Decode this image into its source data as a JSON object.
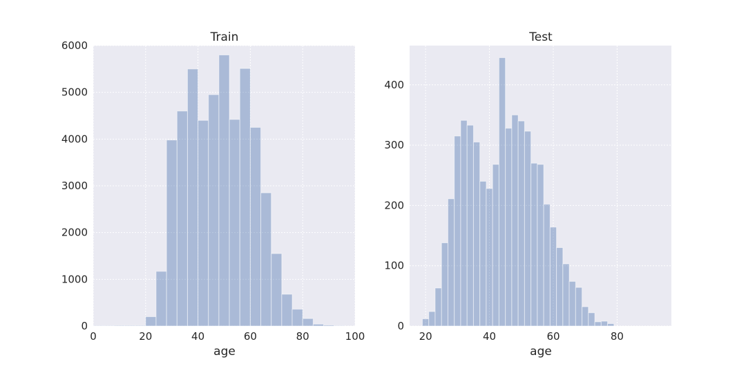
{
  "chart_data": [
    {
      "type": "bar",
      "subtype": "histogram",
      "title": "Train",
      "xlabel": "age",
      "ylabel": "",
      "xlim": [
        0,
        100
      ],
      "ylim": [
        0,
        6000
      ],
      "xticks": [
        0,
        20,
        40,
        60,
        80,
        100
      ],
      "yticks": [
        0,
        1000,
        2000,
        3000,
        4000,
        5000,
        6000
      ],
      "grid": true,
      "color": "#4c72b0",
      "bin_edges": [
        0,
        4,
        8,
        12,
        16,
        20,
        24,
        28,
        32,
        36,
        40,
        44,
        48,
        52,
        56,
        60,
        64,
        68,
        72,
        76,
        80,
        84,
        88,
        92,
        96
      ],
      "values": [
        5,
        5,
        10,
        10,
        10,
        200,
        1170,
        3980,
        4600,
        5500,
        4400,
        4950,
        5800,
        4420,
        5510,
        4250,
        2850,
        1550,
        680,
        360,
        160,
        40,
        20,
        5
      ]
    },
    {
      "type": "bar",
      "subtype": "histogram",
      "title": "Test",
      "xlabel": "age",
      "ylabel": "",
      "xlim": [
        15,
        97
      ],
      "ylim": [
        0,
        465
      ],
      "xticks": [
        20,
        40,
        60,
        80
      ],
      "yticks": [
        0,
        100,
        200,
        300,
        400
      ],
      "grid": true,
      "color": "#4c72b0",
      "bin_edges": [
        19,
        21,
        23,
        25,
        27,
        29,
        31,
        33,
        35,
        37,
        39,
        41,
        43,
        45,
        47,
        49,
        51,
        53,
        55,
        57,
        59,
        61,
        63,
        65,
        67,
        69,
        71,
        73,
        75,
        77,
        79,
        81,
        83
      ],
      "values": [
        12,
        24,
        63,
        138,
        211,
        315,
        341,
        333,
        305,
        240,
        228,
        268,
        445,
        328,
        350,
        340,
        323,
        270,
        268,
        202,
        164,
        130,
        103,
        74,
        64,
        32,
        22,
        7,
        8,
        4,
        0,
        0
      ]
    }
  ]
}
